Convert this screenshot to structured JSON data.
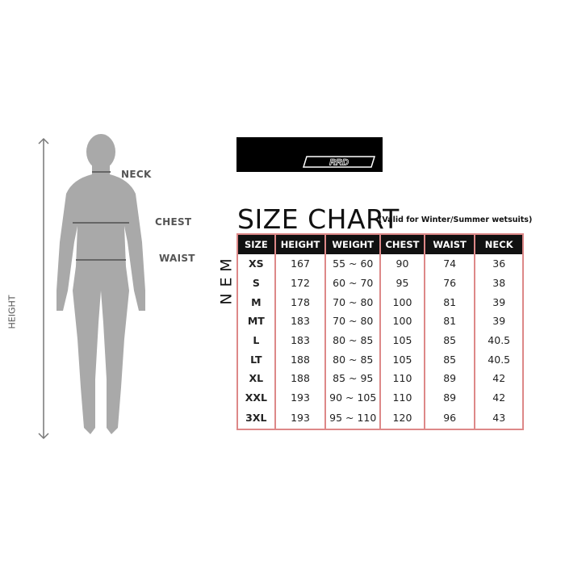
{
  "figure": {
    "labels": {
      "neck": "NECK",
      "chest": "CHEST",
      "waist": "WAIST",
      "height": "HEIGHT"
    },
    "silhouette_color": "#a9a9a9"
  },
  "brand": {
    "logo_text": "RRD"
  },
  "title": "SIZE CHART",
  "subtitle": "(Valid for Winter/Summer wetsuits)",
  "side_label": [
    "M",
    "E",
    "N"
  ],
  "table": {
    "headers": [
      "SIZE",
      "HEIGHT",
      "WEIGHT",
      "CHEST",
      "WAIST",
      "NECK"
    ],
    "rows": [
      [
        "XS",
        "167",
        "55 ~ 60",
        "90",
        "74",
        "36"
      ],
      [
        "S",
        "172",
        "60 ~ 70",
        "95",
        "76",
        "38"
      ],
      [
        "M",
        "178",
        "70 ~ 80",
        "100",
        "81",
        "39"
      ],
      [
        "MT",
        "183",
        "70 ~ 80",
        "100",
        "81",
        "39"
      ],
      [
        "L",
        "183",
        "80 ~ 85",
        "105",
        "85",
        "40.5"
      ],
      [
        "LT",
        "188",
        "80 ~ 85",
        "105",
        "85",
        "40.5"
      ],
      [
        "XL",
        "188",
        "85 ~ 95",
        "110",
        "89",
        "42"
      ],
      [
        "XXL",
        "193",
        "90 ~ 105",
        "110",
        "89",
        "42"
      ],
      [
        "3XL",
        "193",
        "95 ~ 110",
        "120",
        "96",
        "43"
      ]
    ]
  },
  "colors": {
    "border": "#dd8888",
    "header_bg": "#111111"
  }
}
